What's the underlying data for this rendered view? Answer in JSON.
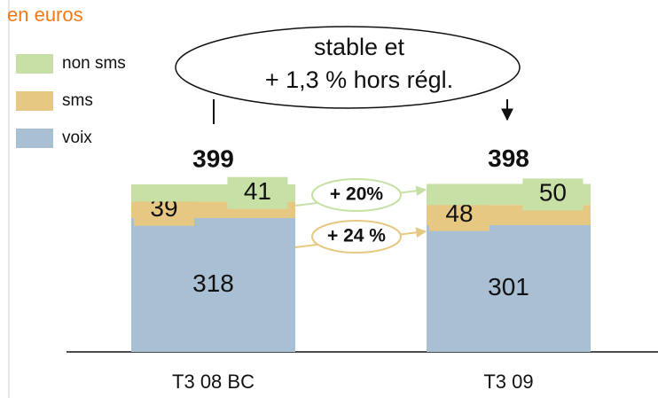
{
  "chart_data": {
    "type": "stacked_bar",
    "title": "en euros",
    "categories": [
      "T3 08 BC",
      "T3 09"
    ],
    "series": [
      {
        "name": "voix",
        "color": "#a8bfd4",
        "values": [
          318,
          301
        ]
      },
      {
        "name": "sms",
        "color": "#e6c883",
        "values": [
          39,
          48
        ]
      },
      {
        "name": "non sms",
        "color": "#c6e0a6",
        "values": [
          41,
          50
        ]
      }
    ],
    "totals": [
      "399",
      "398"
    ],
    "ylim": [
      0,
      400
    ],
    "annotation": [
      "stable et",
      "+ 1,3 % hors régl."
    ],
    "growth": [
      {
        "label": "+ 20%",
        "color": "#c6e0a6"
      },
      {
        "label": "+ 24 %",
        "color": "#e6c883"
      }
    ]
  }
}
